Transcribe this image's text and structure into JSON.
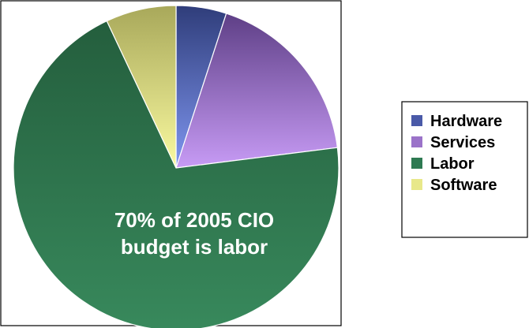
{
  "chart_data": {
    "type": "pie",
    "title": "",
    "slices": [
      {
        "label": "Hardware",
        "value": 5,
        "color": "#4a5aa8",
        "gradient": [
          "#2f3d7a",
          "#7f96f0"
        ]
      },
      {
        "label": "Services",
        "value": 18,
        "color": "#9b73c9",
        "gradient": [
          "#5e3f86",
          "#c79bf5"
        ]
      },
      {
        "label": "Labor",
        "value": 70,
        "color": "#2e7a52",
        "gradient": [
          "#245e3d",
          "#38895c"
        ]
      },
      {
        "label": "Software",
        "value": 7,
        "color": "#e8e88a",
        "gradient": [
          "#a8a85a",
          "#fafaa0"
        ]
      }
    ],
    "start_angle_deg": 0,
    "direction": "clockwise",
    "annotation": [
      "70% of 2005 CIO",
      "budget is labor"
    ],
    "legend": {
      "position": "right",
      "entries": [
        "Hardware",
        "Services",
        "Labor",
        "Software"
      ]
    }
  }
}
